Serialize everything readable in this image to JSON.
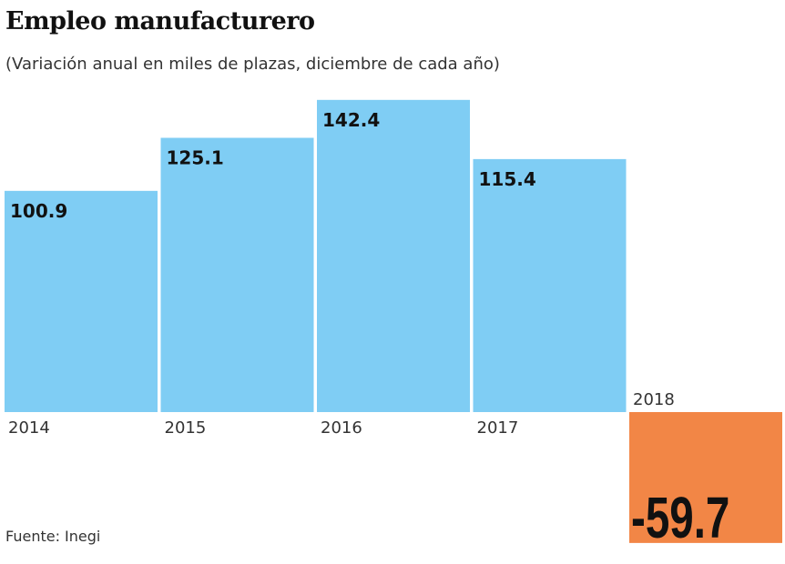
{
  "chart_data": {
    "type": "bar",
    "title": "Empleo manufacturero",
    "subtitle": "(Variación anual en miles de plazas, diciembre de cada año)",
    "categories": [
      "2014",
      "2015",
      "2016",
      "2017",
      "2018"
    ],
    "values": [
      100.9,
      125.1,
      142.4,
      115.4,
      -59.7
    ],
    "value_labels": [
      "100.9",
      "125.1",
      "142.4",
      "115.4",
      "-59.7"
    ],
    "source": "Fuente: Inegi",
    "colors": {
      "positive": "#7fcdf4",
      "negative": "#f28646"
    },
    "grid": false
  }
}
